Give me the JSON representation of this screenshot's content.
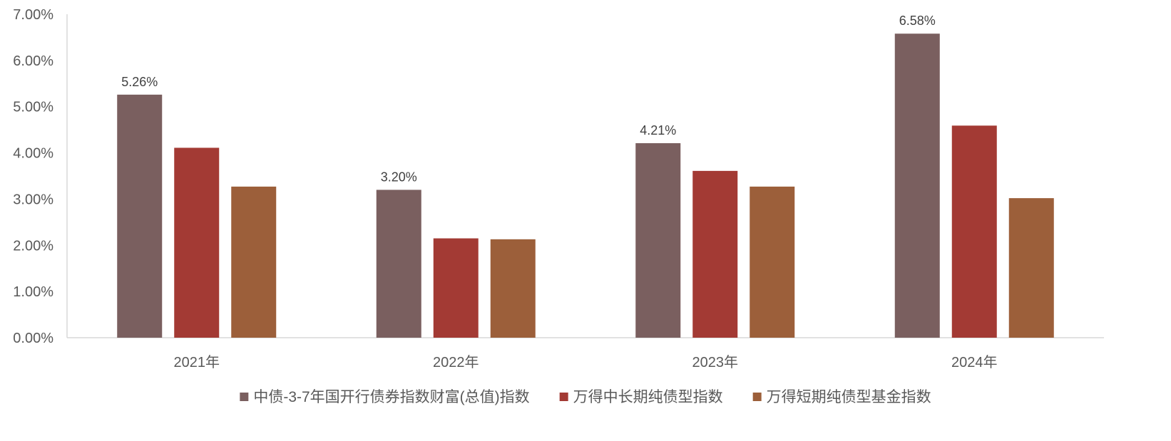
{
  "chart_data": {
    "type": "bar",
    "title": "",
    "xlabel": "",
    "ylabel": "",
    "categories": [
      "2021年",
      "2022年",
      "2023年",
      "2024年"
    ],
    "ylim": [
      0,
      7
    ],
    "y_ticks": [
      "0.00%",
      "1.00%",
      "2.00%",
      "3.00%",
      "4.00%",
      "5.00%",
      "6.00%",
      "7.00%"
    ],
    "grid": false,
    "legend_position": "bottom",
    "series": [
      {
        "name": "中债-3-7年国开行债券指数财富(总值)指数",
        "color": "#7a5f5f",
        "values": [
          5.26,
          3.2,
          4.21,
          6.58
        ],
        "data_labels": [
          "5.26%",
          "3.20%",
          "4.21%",
          "6.58%"
        ]
      },
      {
        "name": "万得中长期纯债型指数",
        "color": "#a33a34",
        "values": [
          4.11,
          2.15,
          3.61,
          4.59
        ]
      },
      {
        "name": "万得短期纯债型基金指数",
        "color": "#9c5f3a",
        "values": [
          3.27,
          2.13,
          3.27,
          3.02
        ]
      }
    ]
  }
}
